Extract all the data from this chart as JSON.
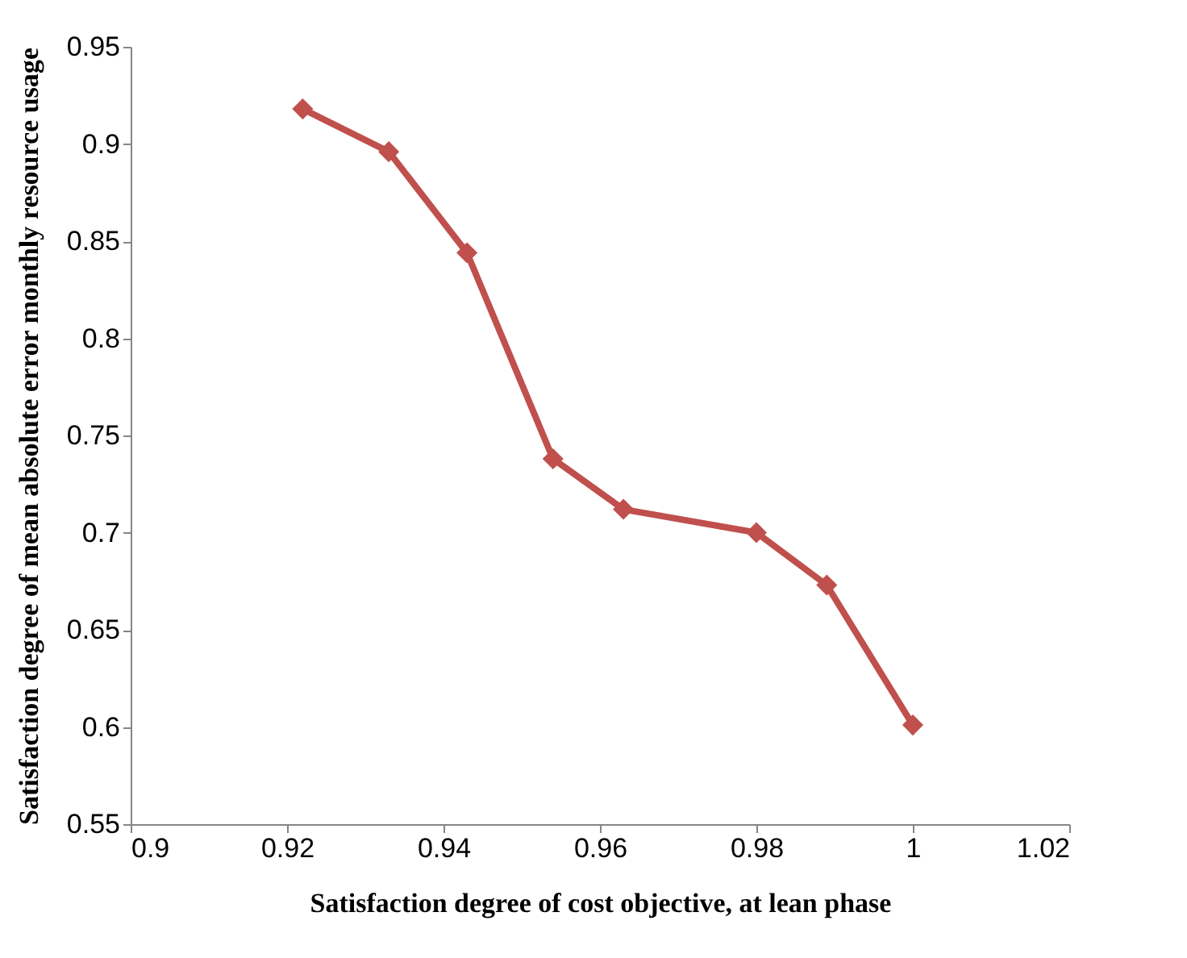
{
  "chart_data": {
    "type": "line",
    "xlabel": "Satisfaction degree of cost objective, at lean phase",
    "ylabel": "Satisfaction degree of mean absolute error monthly resource usage",
    "x": [
      0.922,
      0.933,
      0.943,
      0.954,
      0.963,
      0.98,
      0.989,
      1.0
    ],
    "series": [
      {
        "color": "#c0504d",
        "values": [
          0.918,
          0.896,
          0.844,
          0.738,
          0.712,
          0.7,
          0.673,
          0.601
        ]
      }
    ],
    "xlim": [
      0.9,
      1.02
    ],
    "xticks": [
      0.9,
      0.92,
      0.94,
      0.96,
      0.98,
      1,
      1.02
    ],
    "ylim": [
      0.55,
      0.95
    ],
    "yticks": [
      0.55,
      0.6,
      0.65,
      0.7,
      0.75,
      0.8,
      0.85,
      0.9,
      0.95
    ],
    "grid": false,
    "marker": "diamond",
    "line_style": "solid"
  }
}
